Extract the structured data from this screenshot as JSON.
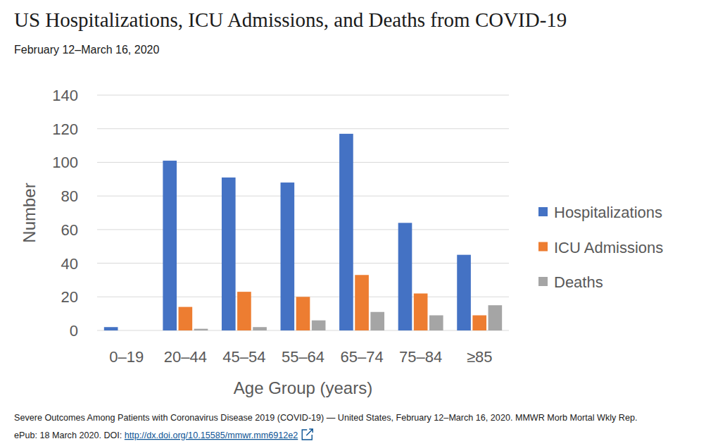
{
  "chart_data": {
    "type": "bar",
    "title": "US Hospitalizations, ICU Admissions, and Deaths from COVID-19",
    "subtitle": "February 12–March 16, 2020",
    "x_label": "Age Group (years)",
    "y_label": "Number",
    "categories": [
      "0–19",
      "20–44",
      "45–54",
      "55–64",
      "65–74",
      "75–84",
      "≥85"
    ],
    "series": [
      {
        "name": "Hospitalizations",
        "color": "#4472c4",
        "values": [
          2,
          101,
          91,
          88,
          117,
          64,
          45
        ]
      },
      {
        "name": "ICU Admissions",
        "color": "#ed7d31",
        "values": [
          0,
          14,
          23,
          20,
          33,
          22,
          9
        ]
      },
      {
        "name": "Deaths",
        "color": "#a5a5a5",
        "values": [
          0,
          1,
          2,
          6,
          11,
          9,
          15
        ]
      }
    ],
    "ylim": [
      0,
      140
    ],
    "yticks": [
      0,
      20,
      40,
      60,
      80,
      100,
      120,
      140
    ],
    "grid": true,
    "legend": "right",
    "source_lines": [
      "Severe Outcomes Among Patients with Coronavirus Disease 2019 (COVID-19) — United States, February 12–March 16, 2020. MMWR Morb Mortal Wkly Rep.",
      "ePub: 18 March 2020. DOI: "
    ],
    "source_link": "http://dx.doi.org/10.15585/mmwr.mm6912e2"
  }
}
